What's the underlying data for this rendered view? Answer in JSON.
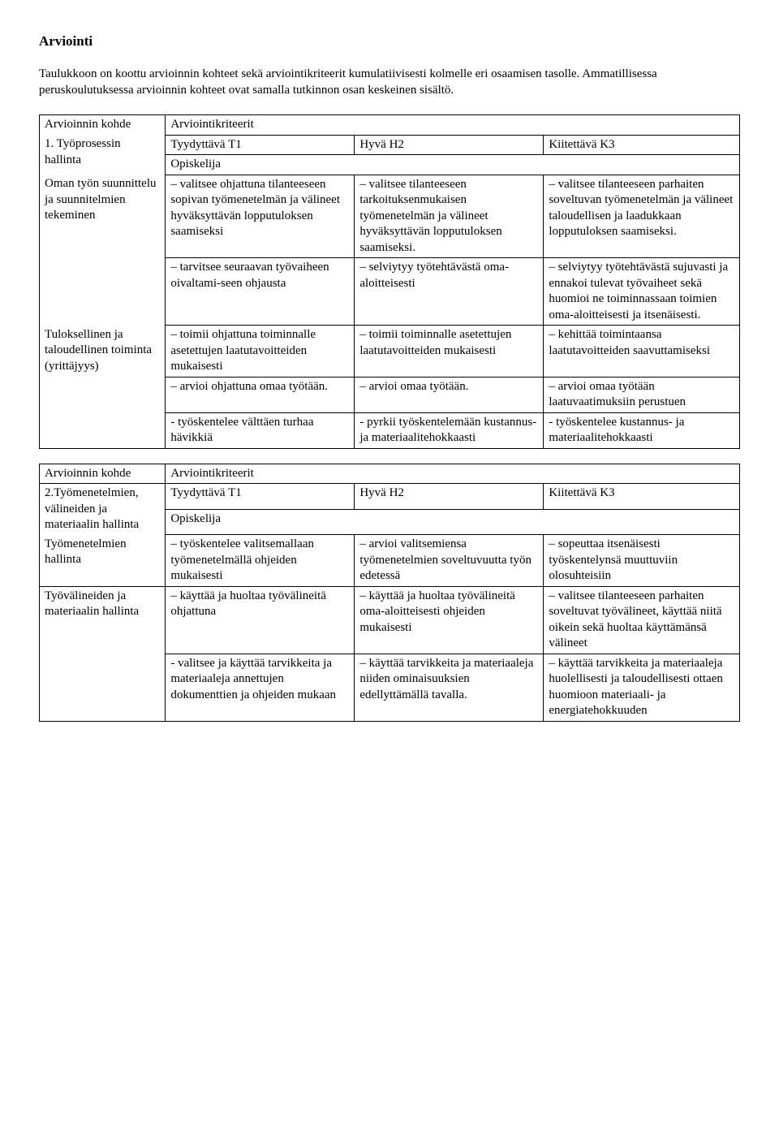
{
  "title": "Arviointi",
  "intro": "Taulukkoon on koottu arvioinnin kohteet sekä arviointikriteerit kumulatiivisesti kolmelle eri osaamisen tasolle. Ammatillisessa peruskoulutuksessa arvioinnin kohteet ovat samalla tutkinnon osan keskeinen sisältö.",
  "t1": {
    "kohde_lbl": "Arvioinnin kohde",
    "kriteerit_lbl": "Arviointikriteerit",
    "num": "1. Työprosessin hallinta",
    "tt": "Tyydyttävä T1",
    "hh": "Hyvä H2",
    "kk": "Kiitettävä K3",
    "op": "Opiskelija",
    "r1_kohde": "Oman työn suunnittelu ja suunnitelmien tekeminen",
    "r1_t": "– valitsee ohjattuna tilanteeseen sopivan työmenetelmän ja välineet hyväksyttävän lopputuloksen saamiseksi",
    "r1_h": "– valitsee tilanteeseen tarkoituksenmukaisen työmenetelmän ja välineet hyväksyttävän lopputuloksen saamiseksi.",
    "r1_k": "– valitsee tilanteeseen parhaiten soveltuvan työmenetelmän ja  välineet taloudellisen ja laadukkaan lopputuloksen saamiseksi.",
    "r2_t": "– tarvitsee seuraavan työvaiheen oivaltami-seen ohjausta",
    "r2_h": "– selviytyy työtehtävästä oma-aloitteisesti",
    "r2_k": "– selviytyy työtehtävästä sujuvasti ja ennakoi tulevat työvaiheet sekä huomioi ne toiminnassaan toimien oma-aloitteisesti ja itsenäisesti.",
    "r3_kohde": "Tuloksellinen ja taloudellinen toiminta (yrittäjyys)",
    "r3_t": "– toimii ohjattuna toiminnalle asetettujen laatutavoitteiden mukaisesti",
    "r3_h": "– toimii toiminnalle asetettujen laatutavoitteiden mukaisesti",
    "r3_k": "–  kehittää toimintaansa laatutavoitteiden saavuttamiseksi",
    "r4_t": "– arvioi ohjattuna omaa työtään.",
    "r4_h": "– arvioi omaa työtään.",
    "r4_k": "– arvioi omaa työtään laatuvaatimuksiin perustuen",
    "r5_t": "- työskentelee välttäen turhaa hävikkiä",
    "r5_h": "- pyrkii työskentelemään kustannus- ja materiaalitehokkaasti",
    "r5_k": "- työskentelee kustannus- ja materiaalitehokkaasti"
  },
  "t2": {
    "kohde_lbl": "Arvioinnin kohde",
    "kriteerit_lbl": "Arviointikriteerit",
    "num": "2.Työmenetelmien, välineiden ja materiaalin hallinta",
    "tt": "Tyydyttävä T1",
    "hh": "Hyvä H2",
    "kk": "Kiitettävä K3",
    "op": "Opiskelija",
    "r1_kohde": "Työmenetelmien hallinta",
    "r1_t": "– työskentelee valitsemallaan työmenetelmällä ohjeiden mukaisesti",
    "r1_h": "– arvioi valitsemiensa työmenetelmien soveltuvuutta työn edetessä",
    "r1_k": "– sopeuttaa itsenäisesti työskentelynsä muuttuviin olosuhteisiin",
    "r2_kohde": "Työvälineiden ja materiaalin hallinta",
    "r2_t": "– käyttää ja huoltaa työvälineitä ohjattuna",
    "r2_h": "– käyttää ja huoltaa työvälineitä oma-aloitteisesti ohjeiden mukaisesti",
    "r2_k": "– valitsee tilanteeseen parhaiten soveltuvat työvälineet, käyttää niitä oikein sekä huoltaa käyttämänsä välineet",
    "r3_t": "- valitsee ja käyttää tarvikkeita ja materiaaleja annettujen dokumenttien ja ohjeiden mukaan",
    "r3_h": "– käyttää tarvikkeita ja materiaaleja niiden ominaisuuksien edellyttämällä tavalla.",
    "r3_k": "– käyttää tarvikkeita ja materiaaleja huolellisesti ja taloudellisesti ottaen huomioon materiaali- ja energiatehokkuuden"
  }
}
